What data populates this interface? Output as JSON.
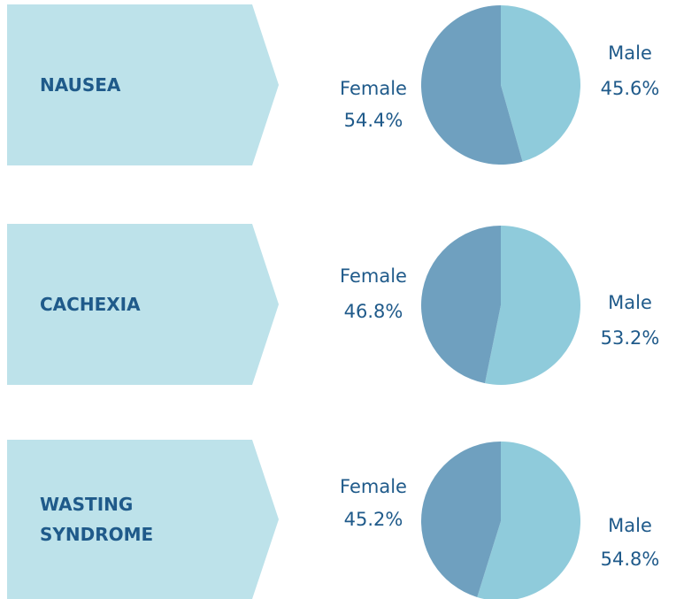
{
  "chart_data": [
    {
      "type": "pie",
      "title": "NAUSEA",
      "categories": [
        "Male",
        "Female"
      ],
      "values": [
        45.6,
        54.4
      ],
      "value_labels": [
        "45.6%",
        "54.4%"
      ],
      "colors": [
        "#8fcbdb",
        "#6fa0bf"
      ]
    },
    {
      "type": "pie",
      "title": "CACHEXIA",
      "categories": [
        "Male",
        "Female"
      ],
      "values": [
        53.2,
        46.8
      ],
      "value_labels": [
        "53.2%",
        "46.8%"
      ],
      "colors": [
        "#8fcbdb",
        "#6fa0bf"
      ]
    },
    {
      "type": "pie",
      "title": "WASTING SYNDROME",
      "categories": [
        "Male",
        "Female"
      ],
      "values": [
        54.8,
        45.2
      ],
      "value_labels": [
        "54.8%",
        "45.2%"
      ],
      "colors": [
        "#8fcbdb",
        "#6fa0bf"
      ]
    }
  ]
}
